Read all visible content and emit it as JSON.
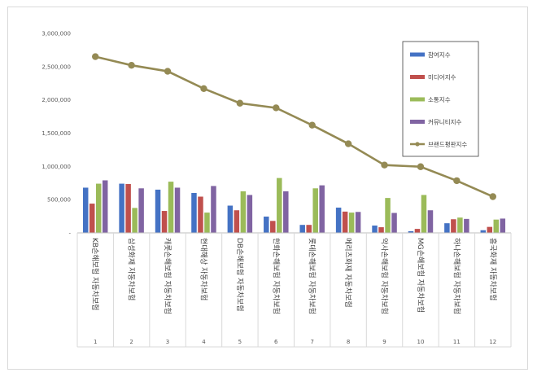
{
  "chart_data": {
    "type": "bar",
    "categories": [
      "KB손해보험 자동차보험",
      "삼성화재 자동차보험",
      "캐롯손해보험 자동차보험",
      "현대해상 자동차보험",
      "DB손해보험 자동차보험",
      "한화손해보험 자동차보험",
      "롯데손해보험 자동차보험",
      "메리츠화재 자동차보험",
      "악사손해보험 자동차보험",
      "MG손해보험 자동차보험",
      "하나손해보험 자동차보험",
      "흥국화재 자동차보험"
    ],
    "index_labels": [
      "1",
      "2",
      "3",
      "4",
      "5",
      "6",
      "7",
      "8",
      "9",
      "10",
      "11",
      "12"
    ],
    "series": [
      {
        "name": "참여지수",
        "type": "bar",
        "color": "#4472c4",
        "values": [
          680000,
          740000,
          650000,
          600000,
          410000,
          245000,
          120000,
          380000,
          110000,
          25000,
          145000,
          40000
        ]
      },
      {
        "name": "미디어지수",
        "type": "bar",
        "color": "#c0504d",
        "values": [
          440000,
          735000,
          330000,
          545000,
          340000,
          180000,
          120000,
          320000,
          85000,
          60000,
          205000,
          90000
        ]
      },
      {
        "name": "소통지수",
        "type": "bar",
        "color": "#9bbb59",
        "values": [
          740000,
          375000,
          770000,
          305000,
          625000,
          825000,
          670000,
          305000,
          525000,
          570000,
          230000,
          200000
        ]
      },
      {
        "name": "커뮤니티지수",
        "type": "bar",
        "color": "#8064a2",
        "values": [
          790000,
          670000,
          680000,
          705000,
          570000,
          625000,
          715000,
          315000,
          300000,
          340000,
          210000,
          215000
        ]
      },
      {
        "name": "브랜드평판지수",
        "type": "line",
        "color": "#948a54",
        "values": [
          2650000,
          2520000,
          2430000,
          2170000,
          1950000,
          1880000,
          1620000,
          1340000,
          1020000,
          995000,
          785000,
          545000
        ]
      }
    ],
    "y_ticks": [
      "-",
      "500,000",
      "1,000,000",
      "1,500,000",
      "2,000,000",
      "2,500,000",
      "3,000,000"
    ],
    "ylim": [
      0,
      3000000
    ],
    "grid": false,
    "legend_position": "top-right",
    "title": "",
    "xlabel": "",
    "ylabel": ""
  }
}
